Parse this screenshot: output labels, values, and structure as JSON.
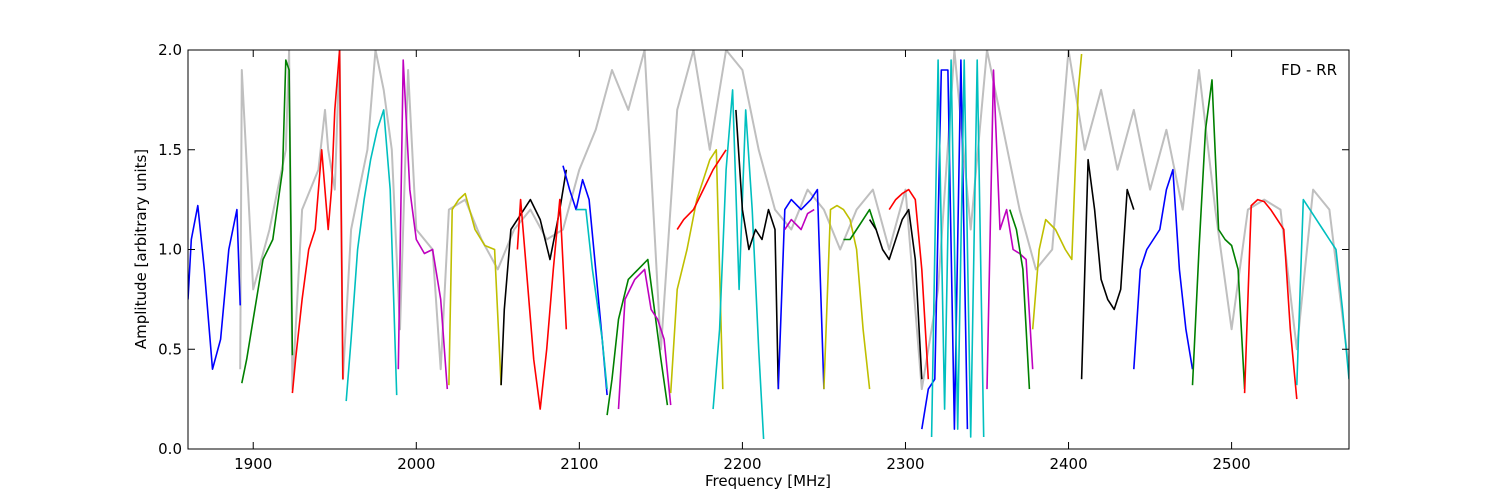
{
  "chart_data": {
    "type": "line",
    "title": "",
    "annotation": "FD - RR",
    "xlabel": "Frequency [MHz]",
    "ylabel": "Amplitude [arbitrary units]",
    "xlim": [
      1860,
      2572
    ],
    "ylim": [
      0,
      2.0
    ],
    "x_ticks": [
      1900,
      2000,
      2100,
      2200,
      2300,
      2400,
      2500
    ],
    "y_ticks": [
      0.0,
      0.5,
      1.0,
      1.5,
      2.0
    ],
    "x_tick_labels": [
      "1900",
      "2000",
      "2100",
      "2200",
      "2300",
      "2400",
      "2500"
    ],
    "y_tick_labels": [
      "0.0",
      "0.5",
      "1.0",
      "1.5",
      "2.0"
    ],
    "grid": false,
    "background_series": {
      "color": "#bfbfbf",
      "x": [
        1892,
        1893,
        1900,
        1910,
        1920,
        1922,
        1924,
        1930,
        1940,
        1944,
        1946,
        1950,
        1953,
        1955,
        1960,
        1965,
        1970,
        1975,
        1980,
        1985,
        1990,
        1995,
        2000,
        2010,
        2015,
        2020,
        2030,
        2040,
        2050,
        2060,
        2070,
        2080,
        2090,
        2100,
        2110,
        2120,
        2130,
        2140,
        2150,
        2160,
        2170,
        2180,
        2190,
        2200,
        2210,
        2220,
        2230,
        2240,
        2250,
        2260,
        2270,
        2280,
        2290,
        2300,
        2310,
        2320,
        2330,
        2340,
        2350,
        2360,
        2370,
        2380,
        2390,
        2400,
        2410,
        2420,
        2430,
        2440,
        2450,
        2460,
        2470,
        2480,
        2490,
        2500,
        2510,
        2520,
        2530,
        2540,
        2550,
        2560,
        2572
      ],
      "y": [
        0.4,
        1.9,
        0.8,
        1.1,
        1.5,
        2.0,
        0.3,
        1.2,
        1.4,
        1.7,
        1.5,
        1.3,
        2.0,
        0.35,
        1.1,
        1.3,
        1.5,
        2.0,
        1.8,
        1.5,
        0.6,
        1.9,
        1.1,
        1.0,
        0.4,
        1.2,
        1.25,
        1.05,
        0.9,
        1.1,
        1.2,
        1.05,
        1.1,
        1.4,
        1.6,
        1.9,
        1.7,
        2.0,
        0.5,
        1.7,
        2.0,
        1.5,
        2.0,
        1.9,
        1.5,
        1.2,
        1.1,
        1.3,
        1.2,
        1.0,
        1.2,
        1.3,
        1.0,
        1.3,
        0.3,
        0.8,
        2.0,
        1.1,
        2.0,
        1.6,
        1.2,
        0.9,
        1.0,
        2.0,
        1.5,
        1.8,
        1.4,
        1.7,
        1.3,
        1.6,
        1.2,
        1.9,
        1.2,
        0.6,
        1.2,
        1.25,
        1.2,
        0.5,
        1.3,
        1.2,
        0.4
      ]
    },
    "series": [
      {
        "color": "#0000ff",
        "x": [
          1860,
          1862,
          1866,
          1870,
          1875,
          1880,
          1885,
          1890,
          1892
        ],
        "y": [
          0.75,
          1.05,
          1.22,
          0.9,
          0.4,
          0.55,
          1.0,
          1.2,
          0.72
        ]
      },
      {
        "color": "#008000",
        "x": [
          1893,
          1896,
          1900,
          1906,
          1912,
          1918,
          1920,
          1922,
          1924
        ],
        "y": [
          0.33,
          0.45,
          0.65,
          0.95,
          1.05,
          1.4,
          1.95,
          1.9,
          0.47
        ]
      },
      {
        "color": "#ff0000",
        "x": [
          1924,
          1926,
          1930,
          1934,
          1938,
          1942,
          1946,
          1948,
          1950,
          1953,
          1955
        ],
        "y": [
          0.28,
          0.45,
          0.75,
          1.0,
          1.1,
          1.5,
          1.1,
          1.3,
          1.7,
          2.0,
          0.35
        ]
      },
      {
        "color": "#00bfbf",
        "x": [
          1957,
          1960,
          1964,
          1968,
          1972,
          1976,
          1980,
          1984,
          1988
        ],
        "y": [
          0.24,
          0.55,
          1.0,
          1.25,
          1.45,
          1.6,
          1.7,
          1.3,
          0.27
        ]
      },
      {
        "color": "#bf00bf",
        "x": [
          1989,
          1992,
          1996,
          2000,
          2005,
          2010,
          2015,
          2019
        ],
        "y": [
          0.4,
          1.95,
          1.3,
          1.05,
          0.98,
          1.0,
          0.75,
          0.3
        ]
      },
      {
        "color": "#bfbf00",
        "x": [
          2020,
          2022,
          2026,
          2030,
          2036,
          2042,
          2048,
          2052
        ],
        "y": [
          0.32,
          1.2,
          1.25,
          1.28,
          1.1,
          1.02,
          1.0,
          0.32
        ]
      },
      {
        "color": "#000000",
        "x": [
          2052,
          2054,
          2058,
          2062,
          2066,
          2070,
          2076,
          2082,
          2088,
          2092
        ],
        "y": [
          0.32,
          0.7,
          1.1,
          1.15,
          1.2,
          1.25,
          1.15,
          0.95,
          1.2,
          1.4
        ]
      },
      {
        "color": "#ff0000",
        "x": [
          2062,
          2064,
          2068,
          2072,
          2076,
          2080,
          2084,
          2088,
          2092
        ],
        "y": [
          1.0,
          1.25,
          0.85,
          0.45,
          0.2,
          0.5,
          0.9,
          1.25,
          0.6
        ]
      },
      {
        "color": "#0000ff",
        "x": [
          2090,
          2094,
          2098,
          2102,
          2106,
          2110,
          2114,
          2117
        ],
        "y": [
          1.42,
          1.3,
          1.2,
          1.35,
          1.25,
          0.9,
          0.55,
          0.27
        ]
      },
      {
        "color": "#00bfbf",
        "x": [
          2098,
          2104,
          2108,
          2114,
          2117
        ],
        "y": [
          1.2,
          1.2,
          0.9,
          0.55,
          0.3
        ]
      },
      {
        "color": "#008000",
        "x": [
          2117,
          2120,
          2124,
          2130,
          2136,
          2142,
          2146,
          2150,
          2154
        ],
        "y": [
          0.17,
          0.35,
          0.65,
          0.85,
          0.9,
          0.95,
          0.7,
          0.45,
          0.22
        ]
      },
      {
        "color": "#bf00bf",
        "x": [
          2124,
          2128,
          2134,
          2140,
          2144,
          2148,
          2152,
          2156
        ],
        "y": [
          0.2,
          0.75,
          0.85,
          0.9,
          0.7,
          0.65,
          0.55,
          0.22
        ]
      },
      {
        "color": "#bfbf00",
        "x": [
          2156,
          2160,
          2166,
          2172,
          2176,
          2180,
          2184,
          2188
        ],
        "y": [
          0.28,
          0.8,
          1.0,
          1.25,
          1.35,
          1.45,
          1.5,
          0.3
        ]
      },
      {
        "color": "#ff0000",
        "x": [
          2160,
          2164,
          2170,
          2176,
          2182,
          2186,
          2190
        ],
        "y": [
          1.1,
          1.15,
          1.2,
          1.3,
          1.4,
          1.45,
          1.5
        ]
      },
      {
        "color": "#00bfbf",
        "x": [
          2182,
          2186,
          2190,
          2194,
          2198,
          2202,
          2206,
          2210,
          2213
        ],
        "y": [
          0.2,
          0.6,
          1.4,
          1.8,
          0.8,
          1.7,
          1.2,
          0.5,
          0.05
        ]
      },
      {
        "color": "#000000",
        "x": [
          2196,
          2200,
          2204,
          2208,
          2212,
          2216,
          2220,
          2222
        ],
        "y": [
          1.7,
          1.2,
          1.0,
          1.1,
          1.05,
          1.2,
          1.1,
          0.3
        ]
      },
      {
        "color": "#0000ff",
        "x": [
          2222,
          2226,
          2230,
          2236,
          2242,
          2246,
          2250
        ],
        "y": [
          0.3,
          1.2,
          1.25,
          1.2,
          1.25,
          1.3,
          0.3
        ]
      },
      {
        "color": "#bf00bf",
        "x": [
          2226,
          2230,
          2236,
          2240,
          2244
        ],
        "y": [
          1.1,
          1.15,
          1.1,
          1.18,
          1.2
        ]
      },
      {
        "color": "#bfbf00",
        "x": [
          2250,
          2254,
          2258,
          2262,
          2266,
          2270,
          2274,
          2278
        ],
        "y": [
          0.3,
          1.2,
          1.22,
          1.2,
          1.15,
          1.0,
          0.6,
          0.3
        ]
      },
      {
        "color": "#008000",
        "x": [
          2262,
          2266,
          2270,
          2274,
          2278,
          2282
        ],
        "y": [
          1.05,
          1.05,
          1.1,
          1.15,
          1.2,
          1.1
        ]
      },
      {
        "color": "#000000",
        "x": [
          2278,
          2282,
          2286,
          2290,
          2294,
          2298,
          2302,
          2306,
          2310
        ],
        "y": [
          1.15,
          1.1,
          1.0,
          0.95,
          1.05,
          1.15,
          1.2,
          0.95,
          0.35
        ]
      },
      {
        "color": "#ff0000",
        "x": [
          2290,
          2294,
          2298,
          2302,
          2306,
          2310,
          2314
        ],
        "y": [
          1.2,
          1.25,
          1.28,
          1.3,
          1.25,
          0.9,
          0.35
        ]
      },
      {
        "color": "#0000ff",
        "x": [
          2310,
          2314,
          2318,
          2322,
          2326,
          2330,
          2334,
          2338
        ],
        "y": [
          0.1,
          0.3,
          0.35,
          1.9,
          1.9,
          0.1,
          1.95,
          0.1
        ]
      },
      {
        "color": "#00bfbf",
        "x": [
          2316,
          2320,
          2324,
          2328,
          2332,
          2336,
          2340,
          2344,
          2348
        ],
        "y": [
          0.06,
          1.95,
          0.2,
          1.95,
          0.1,
          1.95,
          0.06,
          1.95,
          0.06
        ]
      },
      {
        "color": "#bf00bf",
        "x": [
          2350,
          2354,
          2358,
          2362,
          2366,
          2370,
          2374,
          2378
        ],
        "y": [
          0.3,
          1.9,
          1.1,
          1.2,
          1.0,
          0.98,
          0.95,
          0.4
        ]
      },
      {
        "color": "#008000",
        "x": [
          2364,
          2368,
          2372,
          2376
        ],
        "y": [
          1.2,
          1.1,
          0.9,
          0.3
        ]
      },
      {
        "color": "#bfbf00",
        "x": [
          2378,
          2382,
          2386,
          2392,
          2398,
          2402,
          2406,
          2408
        ],
        "y": [
          0.6,
          1.0,
          1.15,
          1.1,
          1.0,
          0.95,
          1.8,
          1.98
        ]
      },
      {
        "color": "#000000",
        "x": [
          2408,
          2412,
          2416,
          2420,
          2424,
          2428,
          2432,
          2436,
          2440
        ],
        "y": [
          0.35,
          1.45,
          1.2,
          0.85,
          0.75,
          0.7,
          0.8,
          1.3,
          1.2
        ]
      },
      {
        "color": "#0000ff",
        "x": [
          2440,
          2444,
          2448,
          2452,
          2456,
          2460,
          2464,
          2468,
          2472,
          2476
        ],
        "y": [
          0.4,
          0.9,
          1.0,
          1.05,
          1.1,
          1.3,
          1.4,
          0.9,
          0.6,
          0.4
        ]
      },
      {
        "color": "#008000",
        "x": [
          2476,
          2480,
          2484,
          2488,
          2492,
          2496,
          2500,
          2504,
          2508
        ],
        "y": [
          0.32,
          1.0,
          1.6,
          1.85,
          1.1,
          1.05,
          1.02,
          0.9,
          0.3
        ]
      },
      {
        "color": "#ff0000",
        "x": [
          2508,
          2512,
          2516,
          2520,
          2524,
          2528,
          2532,
          2536,
          2540
        ],
        "y": [
          0.28,
          1.22,
          1.25,
          1.24,
          1.2,
          1.15,
          1.1,
          0.6,
          0.25
        ]
      },
      {
        "color": "#00bfbf",
        "x": [
          2540,
          2544,
          2548,
          2552,
          2556,
          2560,
          2564,
          2568,
          2572
        ],
        "y": [
          0.32,
          1.25,
          1.2,
          1.15,
          1.1,
          1.05,
          1.0,
          0.7,
          0.35
        ]
      }
    ]
  }
}
